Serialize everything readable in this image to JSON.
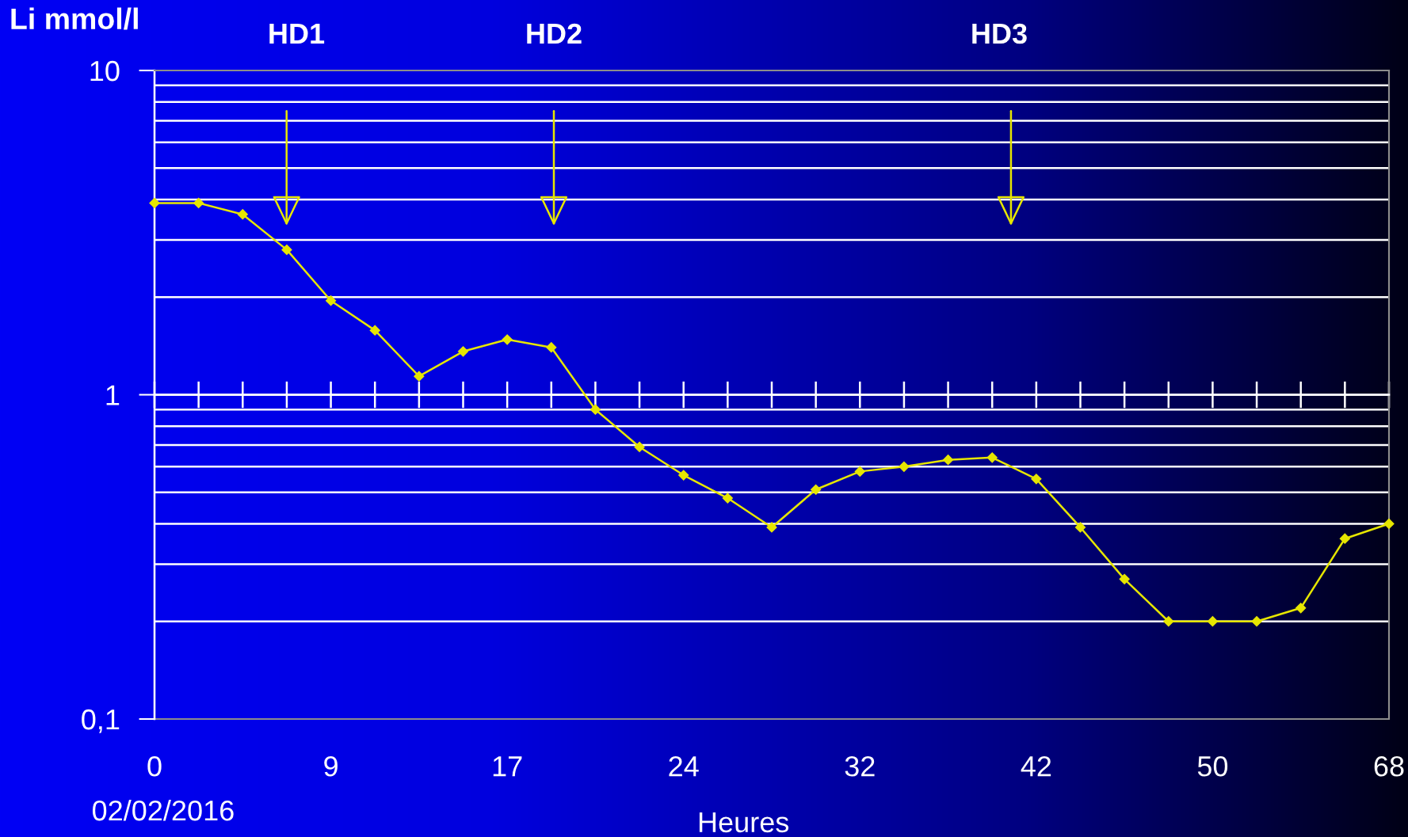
{
  "chart_data": {
    "type": "line",
    "xlabel": "Heures",
    "ylabel": "Li mmol/l",
    "annotations": [
      "HD1",
      "HD2",
      "HD3",
      "02/02/2016"
    ],
    "categories": [
      "0",
      null,
      null,
      null,
      "9",
      null,
      null,
      null,
      "17",
      null,
      null,
      null,
      "24",
      null,
      null,
      null,
      "32",
      null,
      null,
      null,
      "42",
      null,
      null,
      null,
      "50",
      null,
      null,
      null,
      "68"
    ],
    "series": [
      {
        "color": "#e6e600",
        "values": [
          3.9,
          3.9,
          3.6,
          2.8,
          1.95,
          1.58,
          1.14,
          1.36,
          1.48,
          1.4,
          0.9,
          0.69,
          0.565,
          0.48,
          0.39,
          0.51,
          0.58,
          0.6,
          0.63,
          0.64,
          0.55,
          0.39,
          0.27,
          0.2,
          0.2,
          0.2,
          0.22,
          0.36,
          0.4
        ]
      }
    ],
    "log": "y",
    "ylim": [
      0.1,
      10
    ],
    "yticks": [
      {
        "value": 0.1,
        "label": "0,1"
      },
      {
        "value": 0.2,
        "label": null
      },
      {
        "value": 0.3,
        "label": null
      },
      {
        "value": 0.4,
        "label": null
      },
      {
        "value": 0.5,
        "label": null
      },
      {
        "value": 0.6,
        "label": null
      },
      {
        "value": 0.7,
        "label": null
      },
      {
        "value": 0.8,
        "label": null
      },
      {
        "value": 0.9,
        "label": null
      },
      1,
      {
        "value": 2,
        "label": null
      },
      {
        "value": 3,
        "label": null
      },
      {
        "value": 4,
        "label": null
      },
      {
        "value": 5,
        "label": null
      },
      {
        "value": 6,
        "label": null
      },
      {
        "value": 7,
        "label": null
      },
      {
        "value": 8,
        "label": null
      },
      {
        "value": 9,
        "label": null
      },
      10
    ],
    "grid": "y",
    "marker": "diamond",
    "line_style": "solid"
  }
}
